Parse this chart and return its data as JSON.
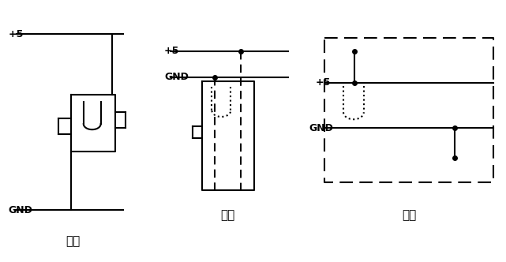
{
  "bg_color": "#ffffff",
  "line_color": "#000000",
  "fig_width": 6.41,
  "fig_height": 3.32,
  "labels": {
    "bad": "不好",
    "ok": "较好",
    "best": "最好",
    "vcc": "+5",
    "gnd": "GND"
  }
}
